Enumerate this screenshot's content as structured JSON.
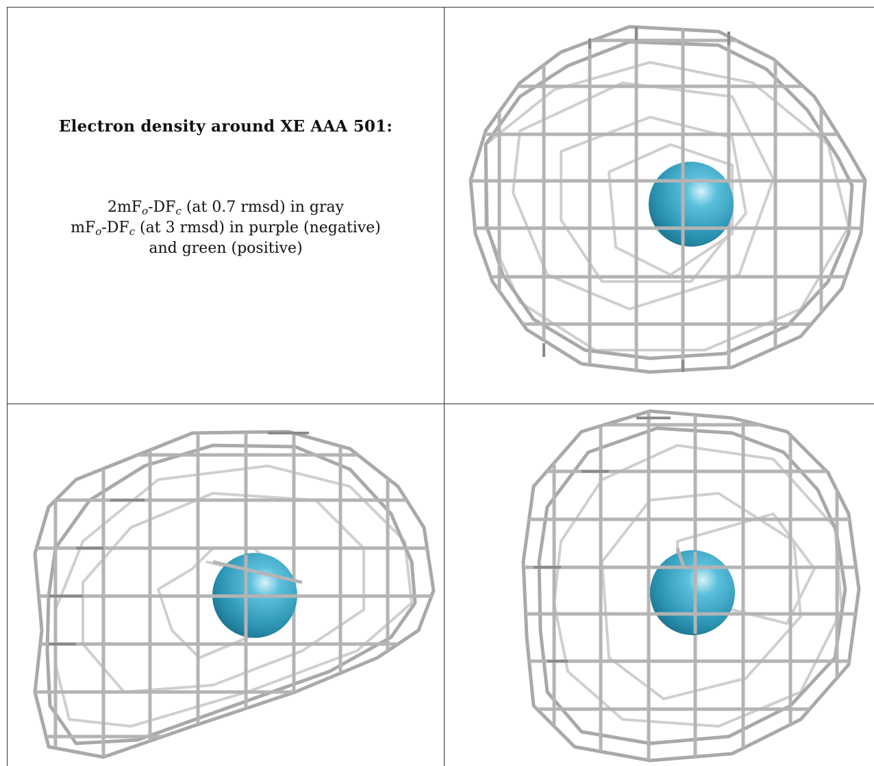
{
  "caption": {
    "title": "Electron density around XE AAA 501:",
    "line1": {
      "pre": "2mF",
      "s1": "o",
      "mid": "-DF",
      "s2": "c",
      "post": " (at 0.7 rmsd) in gray"
    },
    "line2": {
      "pre": "mF",
      "s1": "o",
      "mid": "-DF",
      "s2": "c",
      "post": " (at 3 rmsd) in purple (negative)"
    },
    "line3": "and green (positive)"
  },
  "colors": {
    "mesh": "#b8b8b8",
    "atom": "#3aa6c4",
    "rule": "#333333"
  },
  "views": [
    {
      "name": "view-top-right",
      "atom": "xenon-atom"
    },
    {
      "name": "view-bottom-left",
      "atom": "xenon-atom"
    },
    {
      "name": "view-bottom-right",
      "atom": "xenon-atom"
    }
  ]
}
